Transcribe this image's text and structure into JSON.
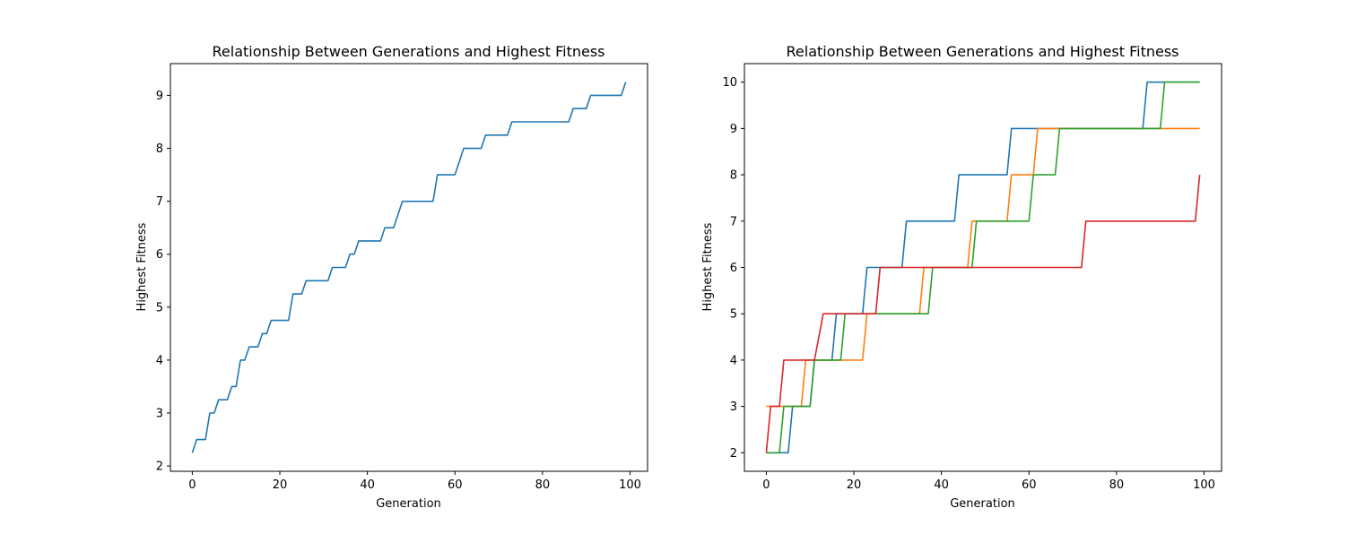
{
  "chart_data": [
    {
      "type": "line",
      "title": "Relationship Between Generations and Highest Fitness",
      "xlabel": "Generation",
      "ylabel": "Highest Fitness",
      "xlim": [
        -5,
        104
      ],
      "ylim": [
        1.9,
        9.6
      ],
      "xticks": [
        "0",
        "20",
        "40",
        "60",
        "80",
        "100"
      ],
      "yticks": [
        "2",
        "3",
        "4",
        "5",
        "6",
        "7",
        "8",
        "9"
      ],
      "grid": false,
      "series": [
        {
          "color": "#1f77b4",
          "points": [
            [
              0,
              2.25
            ],
            [
              1,
              2.5
            ],
            [
              3,
              2.5
            ],
            [
              4,
              3
            ],
            [
              5,
              3
            ],
            [
              6,
              3.25
            ],
            [
              8,
              3.25
            ],
            [
              9,
              3.5
            ],
            [
              10,
              3.5
            ],
            [
              11,
              4
            ],
            [
              12,
              4
            ],
            [
              13,
              4.25
            ],
            [
              15,
              4.25
            ],
            [
              16,
              4.5
            ],
            [
              17,
              4.5
            ],
            [
              18,
              4.75
            ],
            [
              22,
              4.75
            ],
            [
              23,
              5.25
            ],
            [
              25,
              5.25
            ],
            [
              26,
              5.5
            ],
            [
              31,
              5.5
            ],
            [
              32,
              5.75
            ],
            [
              35,
              5.75
            ],
            [
              36,
              6
            ],
            [
              37,
              6
            ],
            [
              38,
              6.25
            ],
            [
              43,
              6.25
            ],
            [
              44,
              6.5
            ],
            [
              46,
              6.5
            ],
            [
              48,
              7
            ],
            [
              55,
              7
            ],
            [
              56,
              7.5
            ],
            [
              60,
              7.5
            ],
            [
              62,
              8
            ],
            [
              66,
              8
            ],
            [
              67,
              8.25
            ],
            [
              72,
              8.25
            ],
            [
              73,
              8.5
            ],
            [
              86,
              8.5
            ],
            [
              87,
              8.75
            ],
            [
              90,
              8.75
            ],
            [
              91,
              9
            ],
            [
              98,
              9
            ],
            [
              99,
              9.25
            ]
          ]
        }
      ]
    },
    {
      "type": "line",
      "title": "Relationship Between Generations and Highest Fitness",
      "xlabel": "Generation",
      "ylabel": "Highest Fitness",
      "xlim": [
        -5,
        104
      ],
      "ylim": [
        1.6,
        10.4
      ],
      "xticks": [
        "0",
        "20",
        "40",
        "60",
        "80",
        "100"
      ],
      "yticks": [
        "2",
        "3",
        "4",
        "5",
        "6",
        "7",
        "8",
        "9",
        "10"
      ],
      "grid": false,
      "series": [
        {
          "color": "#1f77b4",
          "points": [
            [
              0,
              2
            ],
            [
              5,
              2
            ],
            [
              6,
              3
            ],
            [
              10,
              3
            ],
            [
              11,
              4
            ],
            [
              15,
              4
            ],
            [
              16,
              5
            ],
            [
              22,
              5
            ],
            [
              23,
              6
            ],
            [
              31,
              6
            ],
            [
              32,
              7
            ],
            [
              43,
              7
            ],
            [
              44,
              8
            ],
            [
              55,
              8
            ],
            [
              56,
              9
            ],
            [
              86,
              9
            ],
            [
              87,
              10
            ],
            [
              99,
              10
            ]
          ]
        },
        {
          "color": "#ff7f0e",
          "points": [
            [
              0,
              3
            ],
            [
              8,
              3
            ],
            [
              9,
              4
            ],
            [
              22,
              4
            ],
            [
              23,
              5
            ],
            [
              35,
              5
            ],
            [
              36,
              6
            ],
            [
              46,
              6
            ],
            [
              47,
              7
            ],
            [
              55,
              7
            ],
            [
              56,
              8
            ],
            [
              61,
              8
            ],
            [
              62,
              9
            ],
            [
              99,
              9
            ]
          ]
        },
        {
          "color": "#2ca02c",
          "points": [
            [
              0,
              2
            ],
            [
              3,
              2
            ],
            [
              4,
              3
            ],
            [
              10,
              3
            ],
            [
              11,
              4
            ],
            [
              17,
              4
            ],
            [
              18,
              5
            ],
            [
              37,
              5
            ],
            [
              38,
              6
            ],
            [
              47,
              6
            ],
            [
              48,
              7
            ],
            [
              60,
              7
            ],
            [
              61,
              8
            ],
            [
              66,
              8
            ],
            [
              67,
              9
            ],
            [
              90,
              9
            ],
            [
              91,
              10
            ],
            [
              99,
              10
            ]
          ]
        },
        {
          "color": "#d62728",
          "points": [
            [
              0,
              2
            ],
            [
              1,
              3
            ],
            [
              3,
              3
            ],
            [
              4,
              4
            ],
            [
              11,
              4
            ],
            [
              13,
              5
            ],
            [
              25,
              5
            ],
            [
              26,
              6
            ],
            [
              72,
              6
            ],
            [
              73,
              7
            ],
            [
              98,
              7
            ],
            [
              99,
              8
            ]
          ]
        }
      ]
    }
  ]
}
